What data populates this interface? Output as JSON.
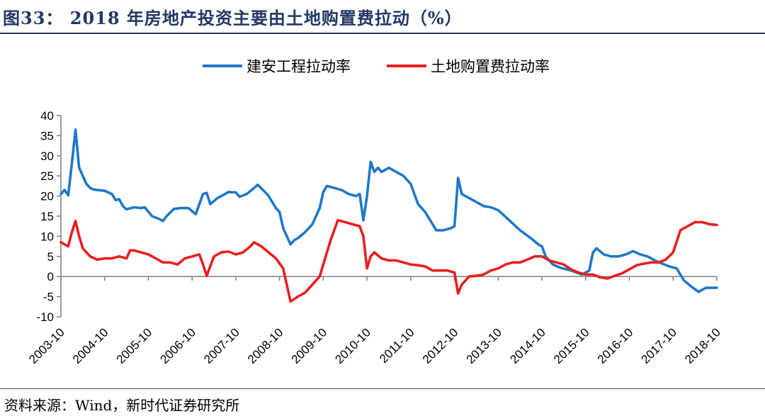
{
  "figure": {
    "title": "图33： 2018 年房地产投资主要由土地购置费拉动（%）",
    "source": "资料来源：Wind，新时代证券研究所"
  },
  "chart_data": {
    "type": "line",
    "title": "",
    "xlabel": "",
    "ylabel": "",
    "ylim": [
      -10,
      40
    ],
    "yticks": [
      "40",
      "35",
      "30",
      "25",
      "20",
      "15",
      "10",
      "5",
      "0",
      "-5",
      "-10"
    ],
    "xtick_labels": [
      "2003-10",
      "2004-10",
      "2005-10",
      "2006-10",
      "2007-10",
      "2008-10",
      "2009-10",
      "2010-10",
      "2011-10",
      "2012-10",
      "2013-10",
      "2014-10",
      "2015-10",
      "2016-10",
      "2017-10",
      "2018-10"
    ],
    "grid": false,
    "legend_position": "top-center",
    "series": [
      {
        "name": "建安工程拉动率",
        "color": "#1f78c8",
        "points": [
          [
            "2003-10",
            20.5
          ],
          [
            "2003-11",
            21.5
          ],
          [
            "2003-12",
            20.2
          ],
          [
            "2004-01",
            28
          ],
          [
            "2004-02",
            36.5
          ],
          [
            "2004-03",
            27
          ],
          [
            "2004-04",
            25
          ],
          [
            "2004-05",
            23
          ],
          [
            "2004-06",
            22
          ],
          [
            "2004-07",
            21.6
          ],
          [
            "2004-08",
            21.5
          ],
          [
            "2004-10",
            21.3
          ],
          [
            "2004-12",
            20.5
          ],
          [
            "2005-01",
            19
          ],
          [
            "2005-02",
            19.2
          ],
          [
            "2005-03",
            17.5
          ],
          [
            "2005-04",
            16.7
          ],
          [
            "2005-06",
            17.2
          ],
          [
            "2005-08",
            17
          ],
          [
            "2005-09",
            17.2
          ],
          [
            "2005-11",
            15
          ],
          [
            "2006-01",
            14.3
          ],
          [
            "2006-02",
            13.8
          ],
          [
            "2006-03",
            15
          ],
          [
            "2006-05",
            16.8
          ],
          [
            "2006-07",
            17
          ],
          [
            "2006-09",
            17
          ],
          [
            "2006-11",
            15.5
          ],
          [
            "2007-01",
            20.5
          ],
          [
            "2007-02",
            20.8
          ],
          [
            "2007-03",
            18
          ],
          [
            "2007-05",
            19.5
          ],
          [
            "2007-07",
            20.5
          ],
          [
            "2007-08",
            21
          ],
          [
            "2007-10",
            20.9
          ],
          [
            "2007-11",
            19.8
          ],
          [
            "2008-01",
            20.5
          ],
          [
            "2008-03",
            22
          ],
          [
            "2008-04",
            22.8
          ],
          [
            "2008-06",
            21
          ],
          [
            "2008-07",
            20
          ],
          [
            "2008-09",
            17
          ],
          [
            "2008-10",
            16
          ],
          [
            "2008-11",
            12
          ],
          [
            "2009-01",
            8
          ],
          [
            "2009-02",
            9
          ],
          [
            "2009-03",
            9.5
          ],
          [
            "2009-05",
            11
          ],
          [
            "2009-07",
            13
          ],
          [
            "2009-09",
            17
          ],
          [
            "2009-10",
            21
          ],
          [
            "2009-11",
            22.5
          ],
          [
            "2010-01",
            22
          ],
          [
            "2010-03",
            21.5
          ],
          [
            "2010-05",
            20.5
          ],
          [
            "2010-07",
            20
          ],
          [
            "2010-08",
            20.5
          ],
          [
            "2010-09",
            14
          ],
          [
            "2010-10",
            20
          ],
          [
            "2010-11",
            28.5
          ],
          [
            "2010-12",
            26
          ],
          [
            "2011-01",
            27
          ],
          [
            "2011-02",
            26
          ],
          [
            "2011-04",
            27
          ],
          [
            "2011-06",
            26
          ],
          [
            "2011-08",
            25
          ],
          [
            "2011-10",
            23
          ],
          [
            "2011-12",
            18
          ],
          [
            "2012-02",
            16
          ],
          [
            "2012-04",
            13
          ],
          [
            "2012-05",
            11.5
          ],
          [
            "2012-07",
            11.5
          ],
          [
            "2012-09",
            12
          ],
          [
            "2012-10",
            12.5
          ],
          [
            "2012-11",
            24.5
          ],
          [
            "2012-12",
            20.5
          ],
          [
            "2013-02",
            19.5
          ],
          [
            "2013-04",
            18.5
          ],
          [
            "2013-06",
            17.5
          ],
          [
            "2013-08",
            17.2
          ],
          [
            "2013-10",
            16.5
          ],
          [
            "2014-01",
            14
          ],
          [
            "2014-04",
            11.5
          ],
          [
            "2014-07",
            9.5
          ],
          [
            "2014-09",
            8
          ],
          [
            "2014-10",
            7.5
          ],
          [
            "2014-11",
            5
          ],
          [
            "2015-01",
            3
          ],
          [
            "2015-03",
            2.2
          ],
          [
            "2015-06",
            1.5
          ],
          [
            "2015-09",
            0.5
          ],
          [
            "2015-11",
            1.5
          ],
          [
            "2015-12",
            6
          ],
          [
            "2016-01",
            7
          ],
          [
            "2016-03",
            5.5
          ],
          [
            "2016-05",
            5
          ],
          [
            "2016-07",
            5
          ],
          [
            "2016-09",
            5.5
          ],
          [
            "2016-11",
            6.3
          ],
          [
            "2017-01",
            5.5
          ],
          [
            "2017-03",
            5
          ],
          [
            "2017-05",
            4
          ],
          [
            "2017-07",
            3.2
          ],
          [
            "2017-09",
            2.5
          ],
          [
            "2017-11",
            2
          ],
          [
            "2018-01",
            -1
          ],
          [
            "2018-03",
            -2.5
          ],
          [
            "2018-05",
            -3.8
          ],
          [
            "2018-07",
            -2.8
          ],
          [
            "2018-09",
            -2.8
          ],
          [
            "2018-10",
            -2.8
          ]
        ]
      },
      {
        "name": "土地购置费拉动率",
        "color": "#e81f1f",
        "points": [
          [
            "2003-10",
            8.5
          ],
          [
            "2003-11",
            8
          ],
          [
            "2003-12",
            7.5
          ],
          [
            "2004-01",
            11
          ],
          [
            "2004-02",
            13.8
          ],
          [
            "2004-03",
            10
          ],
          [
            "2004-04",
            7
          ],
          [
            "2004-06",
            5
          ],
          [
            "2004-08",
            4.2
          ],
          [
            "2004-10",
            4.5
          ],
          [
            "2004-12",
            4.5
          ],
          [
            "2005-02",
            5
          ],
          [
            "2005-04",
            4.5
          ],
          [
            "2005-05",
            6.5
          ],
          [
            "2005-06",
            6.5
          ],
          [
            "2005-08",
            6
          ],
          [
            "2005-10",
            5.5
          ],
          [
            "2005-12",
            4.5
          ],
          [
            "2006-02",
            3.5
          ],
          [
            "2006-04",
            3.5
          ],
          [
            "2006-06",
            3
          ],
          [
            "2006-08",
            4.5
          ],
          [
            "2006-10",
            5
          ],
          [
            "2006-12",
            5.5
          ],
          [
            "2007-01",
            3
          ],
          [
            "2007-02",
            0.2
          ],
          [
            "2007-04",
            5
          ],
          [
            "2007-06",
            6
          ],
          [
            "2007-08",
            6.2
          ],
          [
            "2007-10",
            5.5
          ],
          [
            "2007-12",
            6
          ],
          [
            "2008-02",
            7.5
          ],
          [
            "2008-03",
            8.5
          ],
          [
            "2008-05",
            7.5
          ],
          [
            "2008-07",
            6
          ],
          [
            "2008-09",
            4.5
          ],
          [
            "2008-11",
            2
          ],
          [
            "2009-01",
            -6.2
          ],
          [
            "2009-03",
            -5
          ],
          [
            "2009-05",
            -4
          ],
          [
            "2009-07",
            -2
          ],
          [
            "2009-09",
            0
          ],
          [
            "2009-10",
            3
          ],
          [
            "2009-12",
            9
          ],
          [
            "2010-02",
            14
          ],
          [
            "2010-04",
            13.5
          ],
          [
            "2010-06",
            13
          ],
          [
            "2010-08",
            12.5
          ],
          [
            "2010-09",
            10
          ],
          [
            "2010-10",
            2
          ],
          [
            "2010-11",
            5
          ],
          [
            "2010-12",
            6
          ],
          [
            "2011-02",
            4.5
          ],
          [
            "2011-04",
            4
          ],
          [
            "2011-06",
            4
          ],
          [
            "2011-08",
            3.5
          ],
          [
            "2011-10",
            3
          ],
          [
            "2011-12",
            2.8
          ],
          [
            "2012-02",
            2.5
          ],
          [
            "2012-04",
            1.5
          ],
          [
            "2012-06",
            1.5
          ],
          [
            "2012-08",
            1.5
          ],
          [
            "2012-10",
            1
          ],
          [
            "2012-11",
            -4.2
          ],
          [
            "2012-12",
            -2
          ],
          [
            "2013-02",
            0
          ],
          [
            "2013-04",
            0.2
          ],
          [
            "2013-06",
            0.5
          ],
          [
            "2013-08",
            1.5
          ],
          [
            "2013-10",
            2
          ],
          [
            "2013-12",
            3
          ],
          [
            "2014-02",
            3.5
          ],
          [
            "2014-04",
            3.5
          ],
          [
            "2014-06",
            4.2
          ],
          [
            "2014-08",
            5
          ],
          [
            "2014-10",
            5
          ],
          [
            "2014-12",
            4
          ],
          [
            "2015-02",
            3.5
          ],
          [
            "2015-04",
            3
          ],
          [
            "2015-06",
            1.8
          ],
          [
            "2015-08",
            1
          ],
          [
            "2015-10",
            0.5
          ],
          [
            "2015-12",
            0.5
          ],
          [
            "2016-02",
            -0.2
          ],
          [
            "2016-04",
            -0.5
          ],
          [
            "2016-06",
            0.2
          ],
          [
            "2016-08",
            0.8
          ],
          [
            "2016-10",
            1.8
          ],
          [
            "2016-12",
            2.8
          ],
          [
            "2017-02",
            3.2
          ],
          [
            "2017-04",
            3.5
          ],
          [
            "2017-06",
            3.5
          ],
          [
            "2017-08",
            4.2
          ],
          [
            "2017-10",
            6
          ],
          [
            "2017-12",
            11.5
          ],
          [
            "2018-02",
            12.5
          ],
          [
            "2018-04",
            13.5
          ],
          [
            "2018-06",
            13.5
          ],
          [
            "2018-08",
            13
          ],
          [
            "2018-10",
            12.8
          ]
        ]
      }
    ]
  }
}
